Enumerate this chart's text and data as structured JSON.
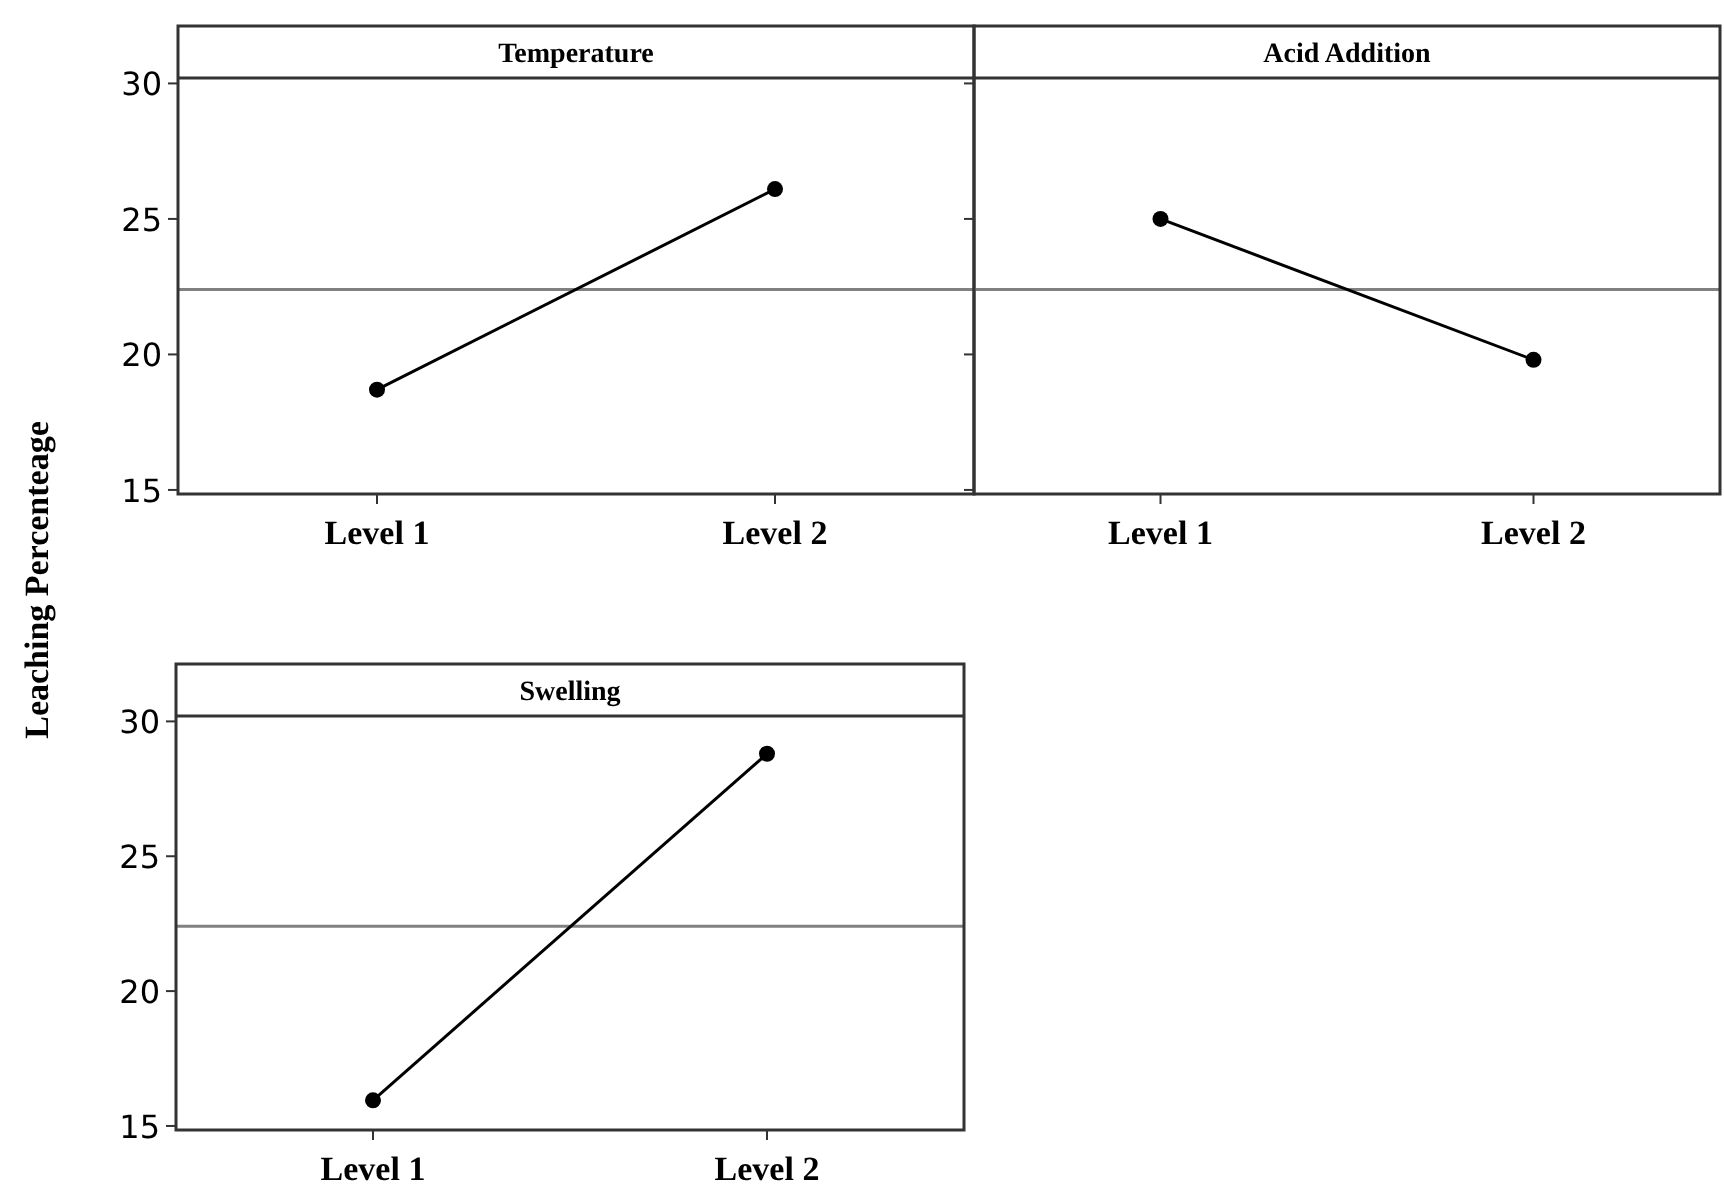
{
  "chart_data": [
    {
      "type": "line",
      "title": "Temperature",
      "ylabel": "Leaching Percenteage",
      "categories": [
        "Level 1",
        "Level 2"
      ],
      "series": [
        {
          "color": "#000000",
          "values": [
            18.7,
            26.1
          ]
        }
      ],
      "ylim": [
        14.85,
        30.2
      ],
      "yticks": [
        15,
        20,
        25,
        30
      ],
      "ref_lines": [
        {
          "axis": "y",
          "value": 22.4,
          "color": "#808080"
        }
      ],
      "marker": "circle"
    },
    {
      "type": "line",
      "title": "Acid Addition",
      "categories": [
        "Level 1",
        "Level 2"
      ],
      "series": [
        {
          "color": "#000000",
          "values": [
            25.0,
            19.8
          ]
        }
      ],
      "ylim": [
        14.85,
        30.2
      ],
      "yticks": [
        15,
        20,
        25,
        30
      ],
      "tick_labels": "x",
      "ref_lines": [
        {
          "axis": "y",
          "value": 22.4,
          "color": "#808080"
        }
      ],
      "marker": "circle"
    },
    {
      "type": "line",
      "title": "Swelling",
      "categories": [
        "Level 1",
        "Level 2"
      ],
      "series": [
        {
          "color": "#000000",
          "values": [
            15.95,
            28.8
          ]
        }
      ],
      "ylim": [
        14.85,
        30.2
      ],
      "yticks": [
        15,
        20,
        25,
        30
      ],
      "ref_lines": [
        {
          "axis": "y",
          "value": 22.4,
          "color": "#808080"
        }
      ],
      "marker": "circle"
    }
  ]
}
